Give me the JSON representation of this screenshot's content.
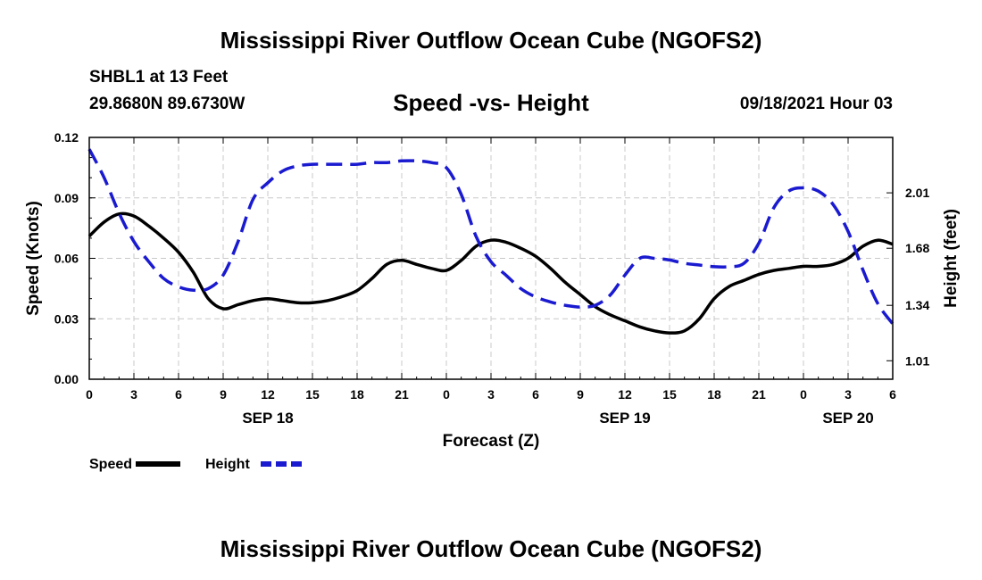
{
  "title": "Mississippi River Outflow Ocean Cube (NGOFS2)",
  "station": "SHBL1 at 13 Feet",
  "coordinates": "29.8680N  89.6730W",
  "subtitle": "Speed -vs- Height",
  "datetime": "09/18/2021 Hour 03",
  "footer_title": "Mississippi River Outflow Ocean Cube (NGOFS2)",
  "colors": {
    "speed": "#000000",
    "height": "#1a1ad0",
    "grid": "#c8c8c8"
  },
  "chart_data": {
    "type": "line",
    "title": "Speed -vs- Height",
    "xlabel": "Forecast (Z)",
    "ylabel_left": "Speed (Knots)",
    "ylabel_right": "Height (feet)",
    "x_range_hours": [
      0,
      54
    ],
    "x_tick_step_hours": 3,
    "x_tick_labels": [
      "0",
      "3",
      "6",
      "9",
      "12",
      "15",
      "18",
      "21",
      "0",
      "3",
      "6",
      "9",
      "12",
      "15",
      "18",
      "21",
      "0",
      "3",
      "6"
    ],
    "day_labels": [
      {
        "label": "SEP 18",
        "hour": 12
      },
      {
        "label": "SEP 19",
        "hour": 36
      },
      {
        "label": "SEP 20",
        "hour": 51
      }
    ],
    "y_left": {
      "range": [
        0,
        0.12
      ],
      "ticks": [
        0,
        0.03,
        0.06,
        0.09,
        0.12
      ],
      "tick_labels": [
        "0.00",
        "0.03",
        "0.06",
        "0.09",
        "0.12"
      ]
    },
    "y_right": {
      "range": [
        0.9,
        2.34
      ],
      "ticks": [
        1.01,
        1.34,
        1.68,
        2.01
      ],
      "tick_labels": [
        "1.01",
        "1.34",
        "1.68",
        "2.01"
      ]
    },
    "grid": true,
    "legend": [
      {
        "label": "Speed",
        "style": "solid"
      },
      {
        "label": "Height",
        "style": "dashed"
      }
    ],
    "series": [
      {
        "name": "Speed",
        "axis": "left",
        "style": "solid",
        "x": [
          0,
          1,
          2,
          3,
          4,
          5,
          6,
          7,
          8,
          9,
          10,
          11,
          12,
          13,
          14,
          15,
          16,
          17,
          18,
          19,
          20,
          21,
          22,
          23,
          24,
          25,
          26,
          27,
          28,
          29,
          30,
          31,
          32,
          33,
          34,
          35,
          36,
          37,
          38,
          39,
          40,
          41,
          42,
          43,
          44,
          45,
          46,
          47,
          48,
          49,
          50,
          51,
          52,
          53,
          54
        ],
        "values": [
          0.071,
          0.078,
          0.082,
          0.081,
          0.076,
          0.07,
          0.063,
          0.053,
          0.04,
          0.035,
          0.037,
          0.039,
          0.04,
          0.039,
          0.038,
          0.038,
          0.039,
          0.041,
          0.044,
          0.05,
          0.057,
          0.059,
          0.057,
          0.055,
          0.054,
          0.059,
          0.066,
          0.069,
          0.068,
          0.065,
          0.061,
          0.055,
          0.048,
          0.042,
          0.036,
          0.032,
          0.029,
          0.026,
          0.024,
          0.023,
          0.024,
          0.03,
          0.04,
          0.046,
          0.049,
          0.052,
          0.054,
          0.055,
          0.056,
          0.056,
          0.057,
          0.06,
          0.066,
          0.069,
          0.067
        ]
      },
      {
        "name": "Height",
        "axis": "right",
        "style": "dashed",
        "x": [
          0,
          1,
          2,
          3,
          4,
          5,
          6,
          7,
          8,
          9,
          10,
          11,
          12,
          13,
          14,
          15,
          16,
          17,
          18,
          19,
          20,
          21,
          22,
          23,
          24,
          25,
          26,
          27,
          28,
          29,
          30,
          31,
          32,
          33,
          34,
          35,
          36,
          37,
          38,
          39,
          40,
          41,
          42,
          43,
          44,
          45,
          46,
          47,
          48,
          49,
          50,
          51,
          52,
          53,
          54
        ],
        "values": [
          2.27,
          2.1,
          1.89,
          1.72,
          1.6,
          1.5,
          1.45,
          1.43,
          1.44,
          1.52,
          1.72,
          1.97,
          2.07,
          2.14,
          2.17,
          2.18,
          2.18,
          2.18,
          2.18,
          2.19,
          2.19,
          2.2,
          2.2,
          2.19,
          2.16,
          2.0,
          1.75,
          1.6,
          1.52,
          1.44,
          1.39,
          1.36,
          1.34,
          1.33,
          1.34,
          1.4,
          1.52,
          1.62,
          1.62,
          1.61,
          1.59,
          1.58,
          1.57,
          1.57,
          1.59,
          1.71,
          1.92,
          2.02,
          2.04,
          2.02,
          1.94,
          1.78,
          1.55,
          1.35,
          1.23
        ]
      }
    ]
  }
}
